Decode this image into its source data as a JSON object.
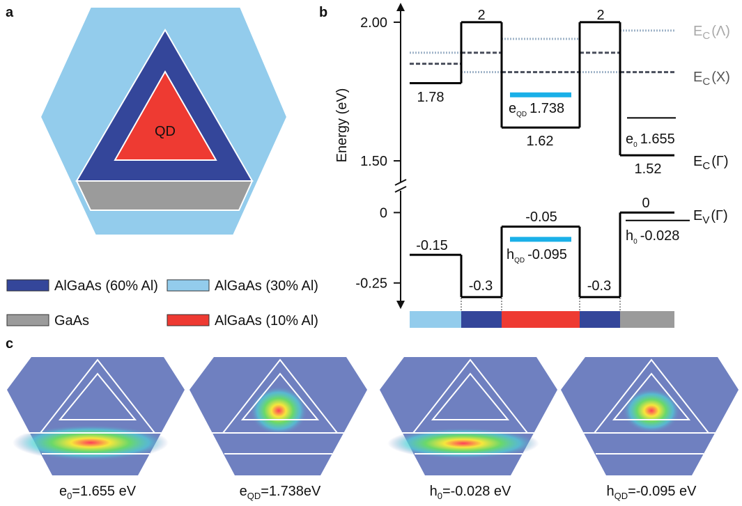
{
  "panel_a": {
    "label": "a",
    "qd_label": "QD",
    "legend": [
      {
        "label": "AlGaAs (60% Al)",
        "color": "#34469a"
      },
      {
        "label": "AlGaAs (30% Al)",
        "color": "#93ccec"
      },
      {
        "label": "GaAs",
        "color": "#9b9b9b"
      },
      {
        "label": "AlGaAs (10% Al)",
        "color": "#ee3a32"
      }
    ]
  },
  "panel_b": {
    "label": "b",
    "y_label": "Energy (eV)",
    "conduction": {
      "ylim": [
        1.45,
        2.05
      ],
      "yticks": [
        {
          "value": 2,
          "label": "2.00"
        },
        {
          "value": 1.5,
          "label": "1.50"
        }
      ],
      "series": [
        {
          "symbol": "E",
          "sub": "C",
          "rest": "(Λ)",
          "color": "#9fb3c8",
          "style": "dotted",
          "values": [
            1.89,
            1.82,
            1.94,
            1.82,
            1.97
          ]
        },
        {
          "symbol": "E",
          "sub": "C",
          "rest": "(X)",
          "color": "#4a4f5c",
          "style": "dashed",
          "values": [
            1.85,
            1.89,
            1.82,
            1.89,
            1.82
          ]
        },
        {
          "symbol": "E",
          "sub": "C",
          "rest": "(Γ)",
          "color": "#000000",
          "style": "solid",
          "values": [
            1.78,
            2,
            1.62,
            2,
            1.52
          ]
        }
      ],
      "levels": [
        {
          "symbol": "e",
          "sub": "QD",
          "value": 1.738,
          "color": "#1ab0e8"
        },
        {
          "symbol": "e",
          "sub": "0",
          "value": 1.655,
          "color": "#000000"
        }
      ]
    },
    "valence": {
      "ylim": [
        -0.34,
        0.09
      ],
      "yticks": [
        0,
        -0.25
      ],
      "series": [
        {
          "symbol": "E",
          "sub": "V",
          "rest": "(Γ)",
          "color": "#000000",
          "style": "solid",
          "values": [
            -0.15,
            -0.3,
            -0.05,
            -0.3,
            0
          ]
        }
      ],
      "levels": [
        {
          "symbol": "h",
          "sub": "QD",
          "value": -0.095,
          "color": "#1ab0e8"
        },
        {
          "symbol": "h",
          "sub": "0",
          "value": -0.028,
          "color": "#000000"
        }
      ]
    }
  },
  "panel_c": {
    "label": "c",
    "panels": [
      {
        "symbol": "e",
        "sub": "0",
        "text": "=1.655 eV"
      },
      {
        "symbol": "e",
        "sub": "QD",
        "text": "=1.738eV"
      },
      {
        "symbol": "h",
        "sub": "0",
        "text": "=-0.028 eV"
      },
      {
        "symbol": "h",
        "sub": "QD",
        "text": "=-0.095 eV"
      }
    ]
  }
}
